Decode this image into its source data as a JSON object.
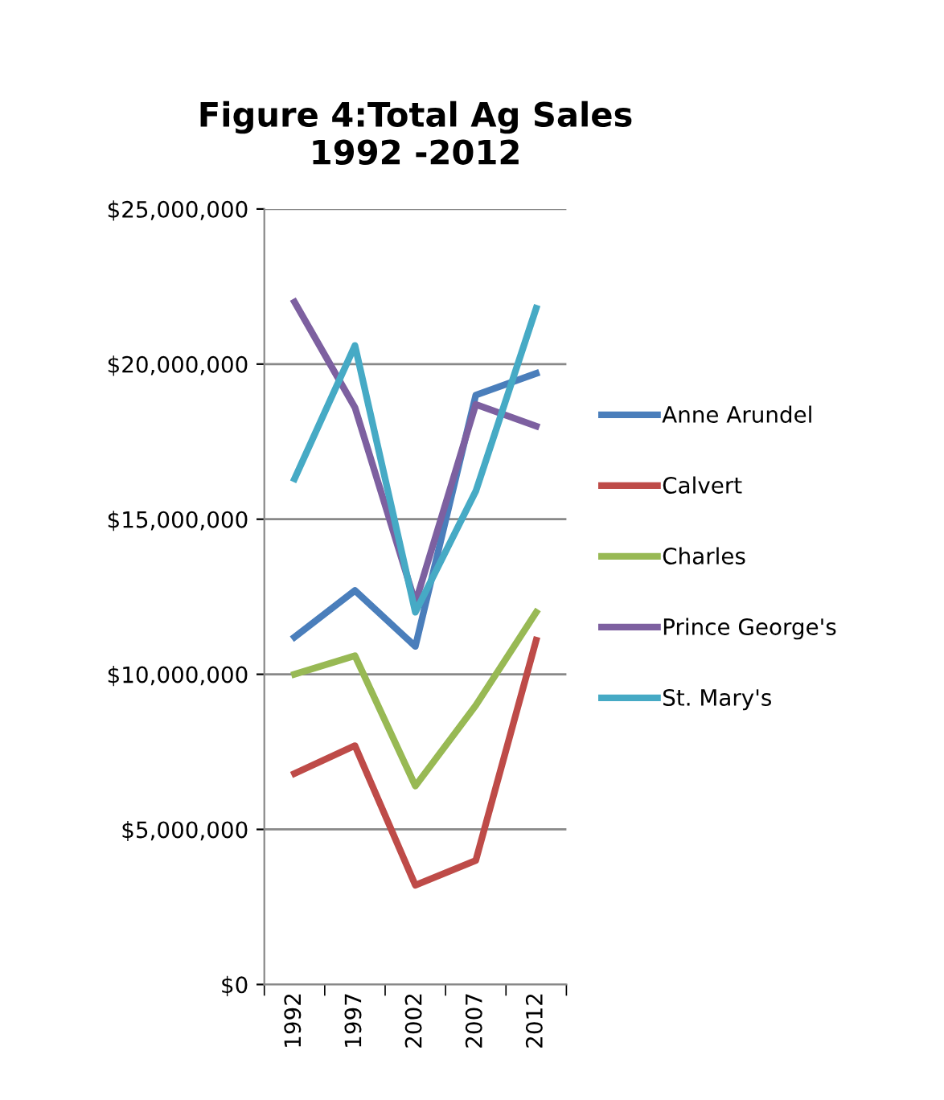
{
  "chart_data": {
    "type": "line",
    "title": "Figure 4:Total Ag Sales\n1992 -2012",
    "categories": [
      "1992",
      "1997",
      "2002",
      "2007",
      "2012"
    ],
    "series": [
      {
        "name": "Anne Arundel",
        "color": "#4a7ebb",
        "values": [
          11200000,
          12700000,
          10900000,
          19000000,
          19700000
        ]
      },
      {
        "name": "Calvert",
        "color": "#be4b48",
        "values": [
          6800000,
          7700000,
          3200000,
          4000000,
          11100000
        ]
      },
      {
        "name": "Charles",
        "color": "#98b954",
        "values": [
          10000000,
          10600000,
          6400000,
          9000000,
          12000000
        ]
      },
      {
        "name": "Prince George's",
        "color": "#7d60a0",
        "values": [
          22000000,
          18600000,
          12300000,
          18700000,
          18000000
        ]
      },
      {
        "name": "St. Mary's",
        "color": "#46aac5",
        "values": [
          16300000,
          20600000,
          12000000,
          15900000,
          21800000
        ]
      }
    ],
    "ylim": [
      0,
      25000000
    ],
    "yticks": [
      {
        "value": 0,
        "label": "$0"
      },
      {
        "value": 5000000,
        "label": "$5,000,000"
      },
      {
        "value": 10000000,
        "label": "$10,000,000"
      },
      {
        "value": 15000000,
        "label": "$15,000,000"
      },
      {
        "value": 20000000,
        "label": "$20,000,000"
      },
      {
        "value": 25000000,
        "label": "$25,000,000"
      }
    ],
    "grid": "y",
    "legend": "right",
    "marker": "none",
    "line_style": "solid"
  }
}
